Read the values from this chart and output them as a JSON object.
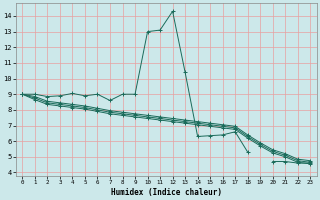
{
  "xlabel": "Humidex (Indice chaleur)",
  "xlim": [
    -0.5,
    23.5
  ],
  "ylim": [
    3.8,
    14.8
  ],
  "xticks": [
    0,
    1,
    2,
    3,
    4,
    5,
    6,
    7,
    8,
    9,
    10,
    11,
    12,
    13,
    14,
    15,
    16,
    17,
    18,
    19,
    20,
    21,
    22,
    23
  ],
  "yticks": [
    4,
    5,
    6,
    7,
    8,
    9,
    10,
    11,
    12,
    13,
    14
  ],
  "bg_color": "#cce8ea",
  "grid_color_v": "#e8a0a0",
  "grid_color_h": "#e8a0a0",
  "line_color": "#1a6b5a",
  "line1": {
    "x": [
      0,
      1,
      2,
      3,
      4,
      5,
      6,
      7,
      8,
      9,
      10,
      11,
      12,
      13,
      14,
      15,
      16,
      17,
      18,
      19,
      20,
      21,
      22,
      23
    ],
    "y": [
      9.0,
      9.0,
      8.85,
      8.9,
      9.05,
      8.9,
      9.0,
      8.6,
      9.0,
      9.0,
      13.0,
      13.1,
      14.3,
      10.4,
      6.3,
      6.35,
      6.4,
      6.6,
      5.3,
      null,
      4.7,
      4.7,
      4.6,
      4.6
    ]
  },
  "line2": {
    "x": [
      0,
      1,
      2,
      3,
      4,
      5,
      6,
      7,
      8,
      9,
      10,
      11,
      12,
      13,
      14,
      15,
      16,
      17,
      18,
      19,
      20,
      21,
      22,
      23
    ],
    "y": [
      9.0,
      8.85,
      8.55,
      8.45,
      8.35,
      8.25,
      8.1,
      7.95,
      7.85,
      7.75,
      7.65,
      7.55,
      7.45,
      7.35,
      7.25,
      7.15,
      7.05,
      6.95,
      6.4,
      5.9,
      5.45,
      5.2,
      4.85,
      4.75
    ]
  },
  "line3": {
    "x": [
      0,
      1,
      2,
      3,
      4,
      5,
      6,
      7,
      8,
      9,
      10,
      11,
      12,
      13,
      14,
      15,
      16,
      17,
      18,
      19,
      20,
      21,
      22,
      23
    ],
    "y": [
      9.0,
      8.75,
      8.45,
      8.35,
      8.25,
      8.15,
      8.0,
      7.85,
      7.75,
      7.65,
      7.55,
      7.45,
      7.35,
      7.25,
      7.15,
      7.05,
      6.95,
      6.85,
      6.3,
      5.8,
      5.35,
      5.1,
      4.75,
      4.65
    ]
  },
  "line4": {
    "x": [
      0,
      1,
      2,
      3,
      4,
      5,
      6,
      7,
      8,
      9,
      10,
      11,
      12,
      13,
      14,
      15,
      16,
      17,
      18,
      19,
      20,
      21,
      22,
      23
    ],
    "y": [
      9.0,
      8.65,
      8.35,
      8.25,
      8.15,
      8.05,
      7.9,
      7.75,
      7.65,
      7.55,
      7.45,
      7.35,
      7.25,
      7.15,
      7.05,
      6.95,
      6.85,
      6.75,
      6.2,
      5.7,
      5.25,
      5.0,
      4.65,
      4.55
    ]
  }
}
